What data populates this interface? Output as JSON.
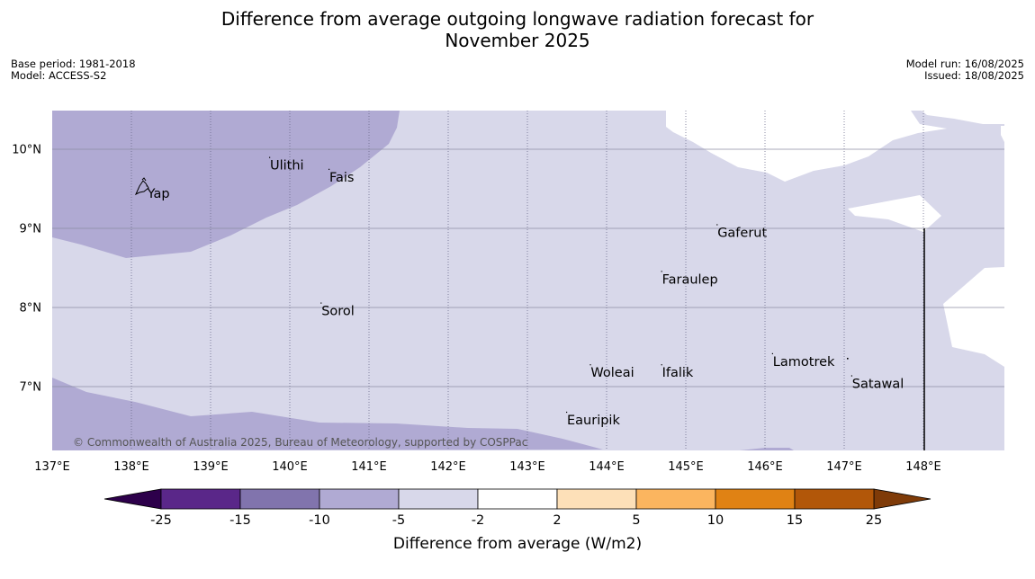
{
  "title": {
    "line1": "Difference from average outgoing longwave radiation forecast for",
    "line2": "November 2025"
  },
  "meta_left": {
    "base_period": "Base period: 1981-2018",
    "model": "Model: ACCESS-S2"
  },
  "meta_right": {
    "model_run": "Model run: 16/08/2025",
    "issued": "Issued: 18/08/2025"
  },
  "copyright": "© Commonwealth of Australia 2025, Bureau of Meteorology, supported by COSPPac",
  "map": {
    "lon_range": [
      137,
      149
    ],
    "lat_range": [
      6.2,
      10.5
    ],
    "lon_ticks": [
      {
        "value": 137,
        "label": "137°E"
      },
      {
        "value": 138,
        "label": "138°E"
      },
      {
        "value": 139,
        "label": "139°E"
      },
      {
        "value": 140,
        "label": "140°E"
      },
      {
        "value": 141,
        "label": "141°E"
      },
      {
        "value": 142,
        "label": "142°E"
      },
      {
        "value": 143,
        "label": "143°E"
      },
      {
        "value": 144,
        "label": "144°E"
      },
      {
        "value": 145,
        "label": "145°E"
      },
      {
        "value": 146,
        "label": "146°E"
      },
      {
        "value": 147,
        "label": "147°E"
      },
      {
        "value": 148,
        "label": "148°E"
      }
    ],
    "lat_ticks": [
      {
        "value": 10,
        "label": "10°N"
      },
      {
        "value": 9,
        "label": "9°N"
      },
      {
        "value": 8,
        "label": "8°N"
      },
      {
        "value": 7,
        "label": "7°N"
      }
    ],
    "places": [
      {
        "name": "Yap",
        "lon": 138.2,
        "lat": 9.52
      },
      {
        "name": "Ulithi",
        "lon": 139.75,
        "lat": 9.88
      },
      {
        "name": "Fais",
        "lon": 140.5,
        "lat": 9.73
      },
      {
        "name": "Gaferut",
        "lon": 145.4,
        "lat": 9.03
      },
      {
        "name": "Faraulep",
        "lon": 144.7,
        "lat": 8.44
      },
      {
        "name": "Sorol",
        "lon": 140.4,
        "lat": 8.04
      },
      {
        "name": "Lamotrek",
        "lon": 146.1,
        "lat": 7.4
      },
      {
        "name": "Woleai",
        "lon": 143.8,
        "lat": 7.26
      },
      {
        "name": "Ifalik",
        "lon": 144.7,
        "lat": 7.26
      },
      {
        "name": "Satawal",
        "lon": 147.1,
        "lat": 7.12
      },
      {
        "name": "Eauripik",
        "lon": 143.5,
        "lat": 6.66
      }
    ]
  },
  "colorbar": {
    "title": "Difference from average (W/m2)",
    "tick_labels": [
      "-25",
      "-15",
      "-10",
      "-5",
      "-2",
      "2",
      "5",
      "10",
      "15",
      "25"
    ],
    "colors": [
      "#5a2789",
      "#8174ad",
      "#b0aad3",
      "#d8d8ea",
      "#ffffff",
      "#fde0b8",
      "#fbb55f",
      "#e08214",
      "#b25709"
    ],
    "under_color": "#2d004b",
    "over_color": "#7f3b08"
  }
}
